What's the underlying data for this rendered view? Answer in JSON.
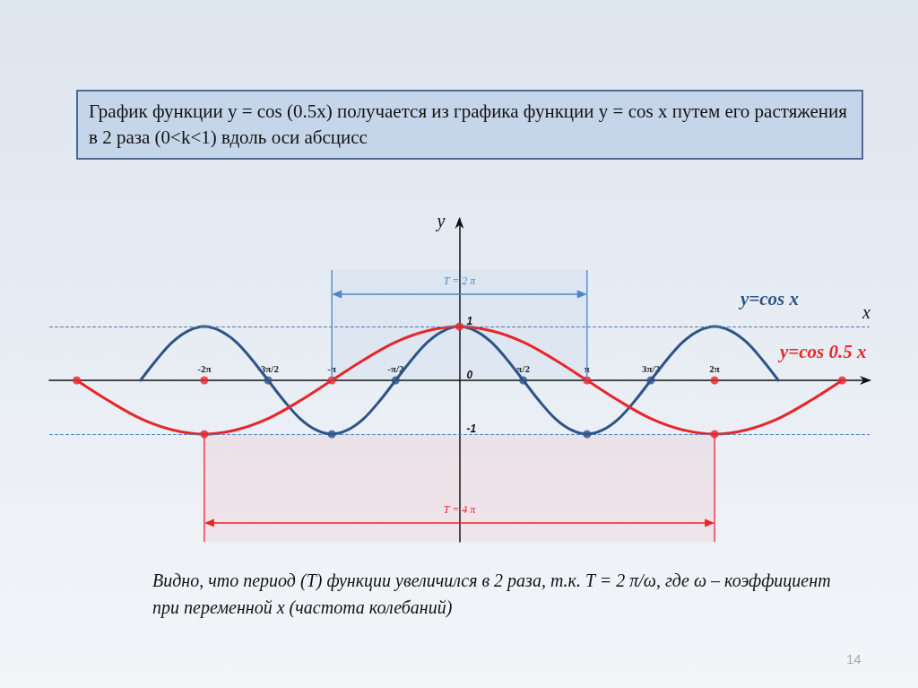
{
  "chart_data": {
    "type": "line",
    "title": "График функции y = cos (0.5x) получается из графика функции  y = cos x путем его растяжения в 2 раза (0<k<1)   вдоль оси абсцисс",
    "xlabel": "x",
    "ylabel": "y",
    "xlim": [
      -10.1,
      10.1
    ],
    "ylim": [
      -3,
      3
    ],
    "xticks": [
      {
        "value": -6.283,
        "label": "-2π"
      },
      {
        "value": -4.712,
        "label": "-3π/2"
      },
      {
        "value": -3.142,
        "label": "-π"
      },
      {
        "value": -1.571,
        "label": "-π/2"
      },
      {
        "value": 1.571,
        "label": "π/2"
      },
      {
        "value": 3.142,
        "label": "π"
      },
      {
        "value": 4.712,
        "label": "3π/2"
      },
      {
        "value": 6.283,
        "label": "2π"
      }
    ],
    "yticks": [
      -1,
      0,
      1
    ],
    "grid": false,
    "legend": false,
    "marker": "none",
    "line_style": "solid",
    "series": [
      {
        "name": "y=cos x",
        "color": "#2e5487",
        "x": [
          -7.854,
          -7.461,
          -7.069,
          -6.676,
          -6.283,
          -5.89,
          -5.498,
          -5.105,
          -4.712,
          -4.32,
          -3.927,
          -3.534,
          -3.142,
          -2.749,
          -2.356,
          -1.963,
          -1.571,
          -1.178,
          -0.785,
          -0.393,
          0,
          0.393,
          0.785,
          1.178,
          1.571,
          1.963,
          2.356,
          2.749,
          3.142,
          3.534,
          3.927,
          4.32,
          4.712,
          5.105,
          5.498,
          5.89,
          6.283,
          6.676,
          7.069,
          7.461,
          7.854
        ],
        "values": [
          0,
          0.38,
          0.71,
          0.92,
          1,
          0.92,
          0.71,
          0.38,
          0,
          -0.38,
          -0.71,
          -0.92,
          -1,
          -0.92,
          -0.71,
          -0.38,
          0,
          0.38,
          0.71,
          0.92,
          1,
          0.92,
          0.71,
          0.38,
          0,
          -0.38,
          -0.71,
          -0.92,
          -1,
          -0.92,
          -0.71,
          -0.38,
          0,
          0.38,
          0.71,
          0.92,
          1,
          0.92,
          0.71,
          0.38,
          0
        ]
      },
      {
        "name": "y=cos 0.5 x",
        "color": "#e8262a",
        "x": [
          -9.425,
          -8.639,
          -7.854,
          -7.069,
          -6.283,
          -5.498,
          -4.712,
          -3.927,
          -3.142,
          -2.356,
          -1.571,
          -0.785,
          0,
          0.785,
          1.571,
          2.356,
          3.142,
          3.927,
          4.712,
          5.498,
          6.283,
          7.069,
          7.854,
          8.639,
          9.425
        ],
        "values": [
          0,
          -0.38,
          -0.71,
          -0.92,
          -1,
          -0.92,
          -0.71,
          -0.38,
          0,
          0.38,
          0.71,
          0.92,
          1,
          0.92,
          0.71,
          0.38,
          0,
          -0.38,
          -0.71,
          -0.92,
          -1,
          -0.92,
          -0.71,
          -0.38,
          0
        ]
      },
      {
        "type": "scatter",
        "marker": "circle",
        "color": "#2e5487",
        "x": [
          -4.712,
          -3.142,
          -1.571,
          1.571,
          3.142,
          4.712
        ],
        "values": [
          0,
          -1,
          0,
          0,
          -1,
          0
        ]
      },
      {
        "type": "scatter",
        "marker": "circle",
        "color": "#e8262a",
        "x": [
          -9.425,
          -6.283,
          -6.283,
          -3.142,
          0,
          3.142,
          6.283,
          6.283,
          9.425
        ],
        "values": [
          0,
          0,
          -1,
          0,
          1,
          0,
          0,
          -1,
          0
        ]
      }
    ],
    "ref_lines": [
      {
        "axis": "y",
        "value": 1,
        "color": "#4a7fc1",
        "line_style": "dashed"
      },
      {
        "axis": "y",
        "value": -1,
        "color": "#4a7fc1",
        "line_style": "dashed"
      }
    ],
    "bands": [
      {
        "axis": "x",
        "from": -3.142,
        "to": 3.142,
        "label": "T = 2 π",
        "color": "#4a86c8"
      },
      {
        "axis": "x",
        "from": -6.283,
        "to": 6.283,
        "label": "T = 4 π",
        "color": "#e8262a"
      }
    ],
    "annotations": [
      "Видно, что период (T) функции увеличился в 2 раза, т.к. T = 2 π/ω, где ω – коэффициент при переменной x (частота колебаний)",
      "14"
    ]
  }
}
